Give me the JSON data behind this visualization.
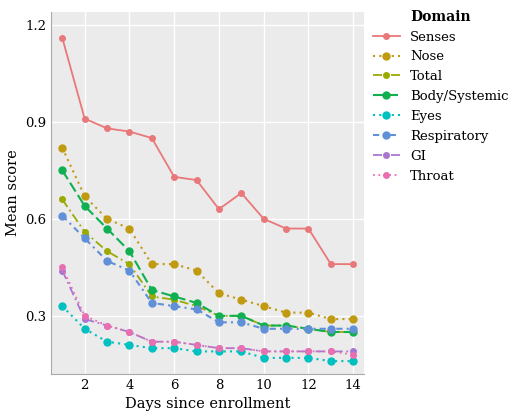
{
  "days": [
    1,
    2,
    3,
    4,
    5,
    6,
    7,
    8,
    9,
    10,
    11,
    12,
    13,
    14
  ],
  "series": [
    {
      "name": "Senses",
      "values": [
        1.16,
        0.91,
        0.88,
        0.87,
        0.85,
        0.73,
        0.72,
        0.63,
        0.68,
        0.6,
        0.57,
        0.57,
        0.46,
        0.46
      ],
      "color": "#E8787A",
      "linestyle": "-",
      "dashes": [],
      "marker": "o",
      "markersize": 4.0,
      "linewidth": 1.3
    },
    {
      "name": "Nose",
      "values": [
        0.82,
        0.67,
        0.6,
        0.57,
        0.46,
        0.46,
        0.44,
        0.37,
        0.35,
        0.33,
        0.31,
        0.31,
        0.29,
        0.29
      ],
      "color": "#C09A10",
      "linestyle": "dotted",
      "dashes": [
        1,
        2
      ],
      "marker": "o",
      "markersize": 5.0,
      "linewidth": 1.5
    },
    {
      "name": "Total",
      "values": [
        0.66,
        0.56,
        0.5,
        0.46,
        0.36,
        0.35,
        0.33,
        0.3,
        0.3,
        0.27,
        0.27,
        0.26,
        0.25,
        0.25
      ],
      "color": "#9AAA00",
      "linestyle": "dashed",
      "dashes": [
        5,
        2,
        1,
        2
      ],
      "marker": "o",
      "markersize": 4.0,
      "linewidth": 1.3
    },
    {
      "name": "Body/Systemic",
      "values": [
        0.75,
        0.64,
        0.57,
        0.5,
        0.38,
        0.36,
        0.34,
        0.3,
        0.3,
        0.27,
        0.27,
        0.26,
        0.25,
        0.25
      ],
      "color": "#10B050",
      "linestyle": "dashed",
      "dashes": [
        5,
        2
      ],
      "marker": "o",
      "markersize": 5.0,
      "linewidth": 1.5
    },
    {
      "name": "Eyes",
      "values": [
        0.33,
        0.26,
        0.22,
        0.21,
        0.2,
        0.2,
        0.19,
        0.19,
        0.19,
        0.17,
        0.17,
        0.17,
        0.16,
        0.16
      ],
      "color": "#00C0C0",
      "linestyle": "dotted",
      "dashes": [
        1,
        2
      ],
      "marker": "o",
      "markersize": 5.0,
      "linewidth": 1.5
    },
    {
      "name": "Respiratory",
      "values": [
        0.61,
        0.54,
        0.47,
        0.44,
        0.34,
        0.33,
        0.32,
        0.28,
        0.28,
        0.26,
        0.26,
        0.26,
        0.26,
        0.26
      ],
      "color": "#6090D8",
      "linestyle": "dashdot",
      "dashes": [
        3,
        2,
        1,
        2
      ],
      "marker": "o",
      "markersize": 5.0,
      "linewidth": 1.5
    },
    {
      "name": "GI",
      "values": [
        0.44,
        0.29,
        0.27,
        0.25,
        0.22,
        0.22,
        0.21,
        0.2,
        0.2,
        0.19,
        0.19,
        0.19,
        0.19,
        0.19
      ],
      "color": "#A878D0",
      "linestyle": "dashed",
      "dashes": [
        5,
        2,
        1,
        2
      ],
      "marker": "o",
      "markersize": 4.0,
      "linewidth": 1.3
    },
    {
      "name": "Throat",
      "values": [
        0.45,
        0.3,
        0.27,
        0.25,
        0.22,
        0.22,
        0.21,
        0.2,
        0.2,
        0.19,
        0.19,
        0.19,
        0.19,
        0.18
      ],
      "color": "#E870B0",
      "linestyle": "dotted",
      "dashes": [
        1,
        2
      ],
      "marker": "o",
      "markersize": 4.0,
      "linewidth": 1.3
    }
  ],
  "xlabel": "Days since enrollment",
  "ylabel": "Mean score",
  "legend_title": "Domain",
  "ylim": [
    0.12,
    1.24
  ],
  "xlim": [
    0.5,
    14.5
  ],
  "xticks": [
    2,
    4,
    6,
    8,
    10,
    12,
    14
  ],
  "yticks": [
    0.3,
    0.6,
    0.9,
    1.2
  ],
  "panel_bg": "#ebebeb",
  "fig_bg": "#ffffff",
  "grid_color": "#ffffff"
}
